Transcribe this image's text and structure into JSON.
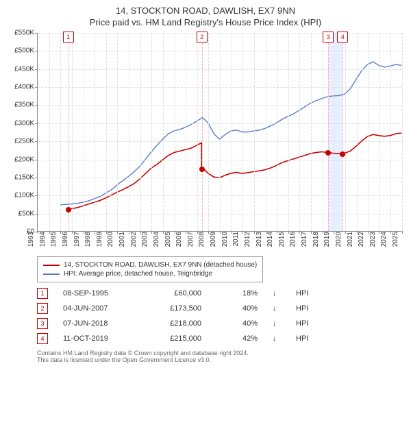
{
  "title": {
    "line1": "14, STOCKTON ROAD, DAWLISH, EX7 9NN",
    "line2": "Price paid vs. HM Land Registry's House Price Index (HPI)",
    "fontsize": 13
  },
  "chart": {
    "type": "line",
    "background_color": "#ffffff",
    "grid_color": "#dddddd",
    "axis_color": "#888888",
    "x": {
      "min": 1993,
      "max": 2025,
      "step": 1,
      "label_fontsize": 10
    },
    "y": {
      "min": 0,
      "max": 550000,
      "step": 50000,
      "prefix": "£",
      "suffix": "K",
      "divide": 1000,
      "label_fontsize": 10
    },
    "highlight_band": {
      "from": 2018.52,
      "to": 2019.78,
      "color": "#e8efff"
    },
    "events": [
      {
        "n": "1",
        "x": 1995.69,
        "dash_color": "#ffaaaa",
        "box_border": "#c80000",
        "text_color": "#c80000"
      },
      {
        "n": "2",
        "x": 2007.42,
        "dash_color": "#ffaaaa",
        "box_border": "#c80000",
        "text_color": "#c80000"
      },
      {
        "n": "3",
        "x": 2018.52,
        "dash_color": "#ffaaaa",
        "box_border": "#c80000",
        "text_color": "#c80000"
      },
      {
        "n": "4",
        "x": 2019.78,
        "dash_color": "#ffaaaa",
        "box_border": "#c80000",
        "text_color": "#c80000"
      }
    ],
    "series": [
      {
        "name": "14, STOCKTON ROAD, DAWLISH, EX7 9NN (detached house)",
        "color": "#c80000",
        "width": 1.6,
        "markers": [
          {
            "x": 1995.69,
            "y": 60000
          },
          {
            "x": 2007.42,
            "y": 173500
          },
          {
            "x": 2018.52,
            "y": 218000
          },
          {
            "x": 2019.78,
            "y": 215000
          }
        ],
        "points": [
          [
            1995.69,
            60000
          ],
          [
            1996.0,
            62000
          ],
          [
            1996.5,
            65000
          ],
          [
            1997.0,
            70000
          ],
          [
            1997.5,
            75000
          ],
          [
            1998.0,
            80000
          ],
          [
            1998.5,
            85000
          ],
          [
            1999.0,
            92000
          ],
          [
            1999.5,
            100000
          ],
          [
            2000.0,
            108000
          ],
          [
            2000.5,
            115000
          ],
          [
            2001.0,
            123000
          ],
          [
            2001.5,
            132000
          ],
          [
            2002.0,
            145000
          ],
          [
            2002.5,
            160000
          ],
          [
            2003.0,
            175000
          ],
          [
            2003.5,
            185000
          ],
          [
            2004.0,
            198000
          ],
          [
            2004.5,
            210000
          ],
          [
            2005.0,
            218000
          ],
          [
            2005.5,
            222000
          ],
          [
            2006.0,
            226000
          ],
          [
            2006.5,
            230000
          ],
          [
            2007.0,
            238000
          ],
          [
            2007.42,
            245000
          ],
          [
            2007.42,
            173500
          ],
          [
            2007.7,
            170000
          ],
          [
            2008.0,
            160000
          ],
          [
            2008.5,
            150000
          ],
          [
            2009.0,
            148000
          ],
          [
            2009.5,
            155000
          ],
          [
            2010.0,
            160000
          ],
          [
            2010.5,
            163000
          ],
          [
            2011.0,
            160000
          ],
          [
            2011.5,
            162000
          ],
          [
            2012.0,
            165000
          ],
          [
            2012.5,
            167000
          ],
          [
            2013.0,
            170000
          ],
          [
            2013.5,
            175000
          ],
          [
            2014.0,
            182000
          ],
          [
            2014.5,
            190000
          ],
          [
            2015.0,
            195000
          ],
          [
            2015.5,
            200000
          ],
          [
            2016.0,
            205000
          ],
          [
            2016.5,
            210000
          ],
          [
            2017.0,
            215000
          ],
          [
            2017.5,
            218000
          ],
          [
            2018.0,
            220000
          ],
          [
            2018.52,
            218000
          ],
          [
            2019.0,
            216000
          ],
          [
            2019.5,
            215000
          ],
          [
            2019.78,
            215000
          ],
          [
            2020.0,
            216000
          ],
          [
            2020.5,
            222000
          ],
          [
            2021.0,
            235000
          ],
          [
            2021.5,
            250000
          ],
          [
            2022.0,
            262000
          ],
          [
            2022.5,
            268000
          ],
          [
            2023.0,
            265000
          ],
          [
            2023.5,
            263000
          ],
          [
            2024.0,
            265000
          ],
          [
            2024.5,
            270000
          ],
          [
            2025.0,
            272000
          ]
        ]
      },
      {
        "name": "HPI: Average price, detached house, Teignbridge",
        "color": "#5a7ac8",
        "width": 1.4,
        "points": [
          [
            1995.0,
            73000
          ],
          [
            1995.5,
            74000
          ],
          [
            1996.0,
            75000
          ],
          [
            1996.5,
            77000
          ],
          [
            1997.0,
            80000
          ],
          [
            1997.5,
            84000
          ],
          [
            1998.0,
            90000
          ],
          [
            1998.5,
            96000
          ],
          [
            1999.0,
            105000
          ],
          [
            1999.5,
            115000
          ],
          [
            2000.0,
            128000
          ],
          [
            2000.5,
            140000
          ],
          [
            2001.0,
            152000
          ],
          [
            2001.5,
            165000
          ],
          [
            2002.0,
            180000
          ],
          [
            2002.5,
            200000
          ],
          [
            2003.0,
            220000
          ],
          [
            2003.5,
            238000
          ],
          [
            2004.0,
            255000
          ],
          [
            2004.5,
            270000
          ],
          [
            2005.0,
            278000
          ],
          [
            2005.5,
            282000
          ],
          [
            2006.0,
            288000
          ],
          [
            2006.5,
            296000
          ],
          [
            2007.0,
            305000
          ],
          [
            2007.5,
            315000
          ],
          [
            2008.0,
            300000
          ],
          [
            2008.5,
            270000
          ],
          [
            2009.0,
            255000
          ],
          [
            2009.5,
            268000
          ],
          [
            2010.0,
            278000
          ],
          [
            2010.5,
            280000
          ],
          [
            2011.0,
            275000
          ],
          [
            2011.5,
            275000
          ],
          [
            2012.0,
            278000
          ],
          [
            2012.5,
            280000
          ],
          [
            2013.0,
            285000
          ],
          [
            2013.5,
            292000
          ],
          [
            2014.0,
            300000
          ],
          [
            2014.5,
            310000
          ],
          [
            2015.0,
            318000
          ],
          [
            2015.5,
            325000
          ],
          [
            2016.0,
            335000
          ],
          [
            2016.5,
            345000
          ],
          [
            2017.0,
            355000
          ],
          [
            2017.5,
            362000
          ],
          [
            2018.0,
            368000
          ],
          [
            2018.5,
            373000
          ],
          [
            2019.0,
            375000
          ],
          [
            2019.5,
            376000
          ],
          [
            2020.0,
            380000
          ],
          [
            2020.5,
            395000
          ],
          [
            2021.0,
            420000
          ],
          [
            2021.5,
            445000
          ],
          [
            2022.0,
            462000
          ],
          [
            2022.5,
            470000
          ],
          [
            2023.0,
            460000
          ],
          [
            2023.5,
            455000
          ],
          [
            2024.0,
            458000
          ],
          [
            2024.5,
            462000
          ],
          [
            2025.0,
            460000
          ]
        ]
      }
    ]
  },
  "legend": {
    "items": [
      {
        "color": "#c80000",
        "label": "14, STOCKTON ROAD, DAWLISH, EX7 9NN (detached house)"
      },
      {
        "color": "#5a7ac8",
        "label": "HPI: Average price, detached house, Teignbridge"
      }
    ]
  },
  "events_table": {
    "box_border": "#c80000",
    "text_color": "#c80000",
    "arrow": "↓",
    "hpi_label": "HPI",
    "rows": [
      {
        "n": "1",
        "date": "08-SEP-1995",
        "price": "£60,000",
        "pct": "18%"
      },
      {
        "n": "2",
        "date": "04-JUN-2007",
        "price": "£173,500",
        "pct": "40%"
      },
      {
        "n": "3",
        "date": "07-JUN-2018",
        "price": "£218,000",
        "pct": "40%"
      },
      {
        "n": "4",
        "date": "11-OCT-2019",
        "price": "£215,000",
        "pct": "42%"
      }
    ]
  },
  "footer": {
    "line1": "Contains HM Land Registry data © Crown copyright and database right 2024.",
    "line2": "This data is licensed under the Open Government Licence v3.0."
  }
}
